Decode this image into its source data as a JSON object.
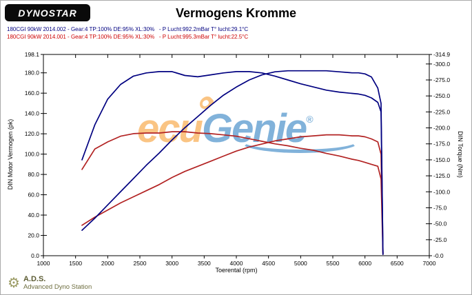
{
  "header": {
    "logo_text": "DYNOSTAR",
    "title": "Vermogens Kromme"
  },
  "legend": [
    {
      "label": "180CGI 90kW 2014.002 - Gear:4 TP:100% DE:95% XL:30%   - P Lucht:992.2mBar T° lucht:29.1°C",
      "color": "#000080"
    },
    {
      "label": "180CGI 90kW 2014.001 - Gear:4 TP:100% DE:95% XL:30%   - P Lucht:995.3mBar T° lucht:22.5°C",
      "color": "#cc0000"
    }
  ],
  "watermark": {
    "part1": "ecu",
    "part2": "Genie",
    "reg": "®",
    "color1": "#f7941e",
    "color2": "#1b75bc"
  },
  "footer": {
    "abbr": "A.D.S.",
    "name": "Advanced Dyno Station"
  },
  "chart_data": {
    "type": "line",
    "title": "Vermogens Kromme",
    "xlabel": "Toerental (rpm)",
    "ylabel_left": "DIN Motor Vermogen (pk)",
    "ylabel_right": "DIN Torque (Nm)",
    "x_range": [
      1000,
      7000
    ],
    "y_left_range": [
      0,
      198.1
    ],
    "y_right_range": [
      0,
      314.9
    ],
    "grid": false,
    "legend_position": "top-left",
    "x_tick_values": [
      1000,
      1500,
      2000,
      2500,
      3000,
      3500,
      4000,
      4500,
      5000,
      5500,
      6000,
      6500,
      7000
    ],
    "x_tick_labels": [
      "1000",
      "1500",
      "2000",
      "2500",
      "3000",
      "3500",
      "4000",
      "4500",
      "5000",
      "5500",
      "6000",
      "6500",
      "7000"
    ],
    "y_left_tick_values": [
      0,
      20,
      40,
      60,
      80,
      100,
      120,
      140,
      160,
      180,
      198.1
    ],
    "y_left_tick_labels": [
      "0.0",
      "20.0",
      "40.0",
      "60.0",
      "80.0",
      "100.0",
      "120.0",
      "140.0",
      "160.0",
      "180.0",
      "198.1"
    ],
    "y_right_tick_values": [
      0,
      25,
      50,
      75,
      100,
      125,
      150,
      175,
      200,
      225,
      250,
      275,
      300,
      314.9
    ],
    "y_right_tick_labels": [
      "-0.0",
      "-25.0",
      "-50.0",
      "-75.0",
      "-100.0",
      "-125.0",
      "-150.0",
      "-175.0",
      "-200.0",
      "-225.0",
      "-250.0",
      "-275.0",
      "-300.0",
      "-314.9"
    ],
    "rpm": [
      1600,
      1800,
      2000,
      2200,
      2400,
      2600,
      2800,
      3000,
      3200,
      3400,
      3600,
      3800,
      4000,
      4200,
      4400,
      4600,
      4800,
      5000,
      5200,
      5400,
      5600,
      5800,
      5900,
      6000,
      6100,
      6200,
      6250,
      6280
    ],
    "series": [
      {
        "name": "vermogen-2014.002",
        "run": "2014.002",
        "axis": "left",
        "unit": "pk",
        "color": "#000080",
        "values": [
          25,
          37,
          50,
          63,
          76,
          89,
          101,
          114,
          126,
          137,
          148,
          158,
          166,
          173,
          178,
          181,
          182,
          182,
          182,
          182,
          181,
          180,
          180,
          179,
          176,
          165,
          150,
          2
        ]
      },
      {
        "name": "koppel-2014.002",
        "run": "2014.002",
        "axis": "right",
        "unit": "Nm",
        "color": "#000080",
        "values": [
          150,
          205,
          245,
          268,
          281,
          286,
          288,
          288,
          282,
          280,
          283,
          286,
          288,
          288,
          286,
          281,
          275,
          269,
          264,
          259,
          256,
          254,
          253,
          251,
          247,
          240,
          225,
          2
        ]
      },
      {
        "name": "vermogen-2014.001",
        "run": "2014.001",
        "axis": "left",
        "unit": "pk",
        "color": "#b22222",
        "values": [
          30,
          38,
          45,
          52,
          58,
          64,
          70,
          77,
          83,
          88,
          93,
          98,
          103,
          107,
          110,
          113,
          115,
          117,
          118,
          119,
          119,
          118,
          118,
          117,
          115,
          112,
          100,
          2
        ]
      },
      {
        "name": "koppel-2014.001",
        "run": "2014.001",
        "axis": "right",
        "unit": "Nm",
        "color": "#b22222",
        "values": [
          135,
          167,
          178,
          187,
          191,
          192,
          192,
          194,
          194,
          192,
          191,
          189,
          187,
          183,
          179,
          175,
          172,
          168,
          165,
          160,
          156,
          151,
          149,
          146,
          143,
          140,
          120,
          2
        ]
      }
    ]
  }
}
